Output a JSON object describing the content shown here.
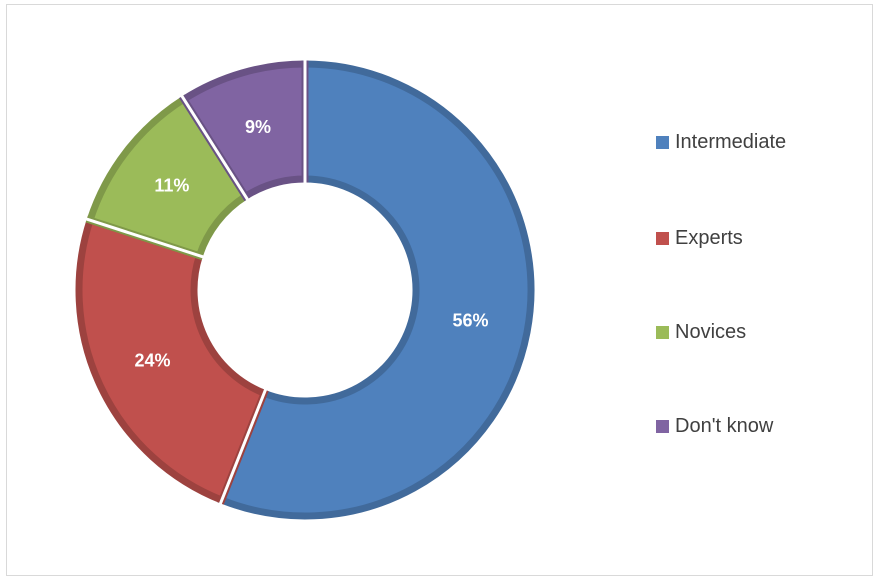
{
  "chart_data": {
    "type": "pie",
    "variant": "doughnut",
    "title": "",
    "series": [
      {
        "name": "Intermediate",
        "value": 56,
        "label": "56%",
        "color": "#4F81BD"
      },
      {
        "name": "Experts",
        "value": 24,
        "label": "24%",
        "color": "#C0504D"
      },
      {
        "name": "Novices",
        "value": 11,
        "label": "11%",
        "color": "#9BBB59"
      },
      {
        "name": "Don't know",
        "value": 9,
        "label": "9%",
        "color": "#8064A2"
      }
    ],
    "legend_position": "right"
  }
}
